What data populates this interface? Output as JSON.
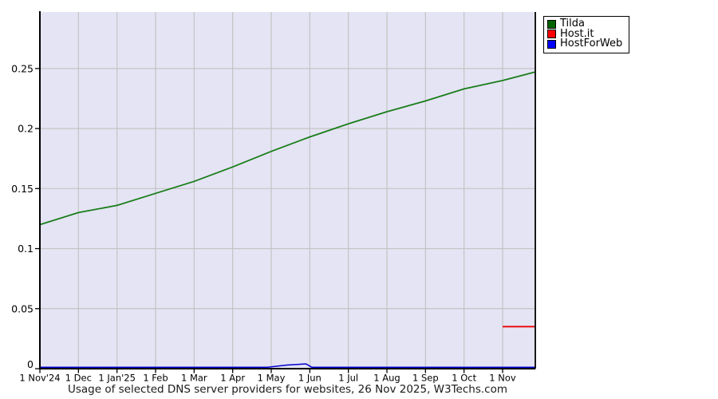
{
  "chart_data": {
    "type": "line",
    "title": "Usage of selected DNS server providers for websites, 26 Nov 2025, W3Techs.com",
    "xlabel": "",
    "ylabel": "",
    "x_tick_labels": [
      "1 Nov'24",
      "1 Dec",
      "1 Jan'25",
      "1 Feb",
      "1 Mar",
      "1 Apr",
      "1 May",
      "1 Jun",
      "1 Jul",
      "1 Aug",
      "1 Sep",
      "1 Oct",
      "1 Nov"
    ],
    "x_range_months": [
      0,
      12.83
    ],
    "y_ticks": [
      0,
      0.05,
      0.1,
      0.15,
      0.2,
      0.25
    ],
    "y_tick_labels": [
      "0",
      "0.05",
      "0.1",
      "0.15",
      "0.2",
      "0.25"
    ],
    "ylim": [
      0,
      0.2971
    ],
    "grid": true,
    "legend_position": "outside-top-right",
    "colors": {
      "plot_bg": "#e4e4f4",
      "grid": "#c4c4c4",
      "axis": "#000000",
      "text": "#000000"
    },
    "series": [
      {
        "name": "Tilda",
        "color": "#1a7d1a",
        "swatch": "#006400",
        "points": [
          [
            0,
            0.12
          ],
          [
            1,
            0.13
          ],
          [
            2,
            0.136
          ],
          [
            3,
            0.146
          ],
          [
            4,
            0.156
          ],
          [
            5,
            0.168
          ],
          [
            6,
            0.181
          ],
          [
            7,
            0.193
          ],
          [
            8,
            0.204
          ],
          [
            9,
            0.214
          ],
          [
            10,
            0.223
          ],
          [
            11,
            0.233
          ],
          [
            12,
            0.24
          ],
          [
            12.83,
            0.247
          ]
        ]
      },
      {
        "name": "Host.it",
        "color": "#ee0000",
        "swatch": "#ff0000",
        "points": [
          [
            12,
            0.035
          ],
          [
            12.83,
            0.035
          ]
        ]
      },
      {
        "name": "HostForWeb",
        "color": "#0000cc",
        "swatch": "#0000ff",
        "points": [
          [
            0,
            0.0012
          ],
          [
            5.9,
            0.0012
          ],
          [
            6.4,
            0.003
          ],
          [
            6.9,
            0.004
          ],
          [
            7.05,
            0.0012
          ],
          [
            12.83,
            0.0012
          ]
        ]
      }
    ]
  }
}
